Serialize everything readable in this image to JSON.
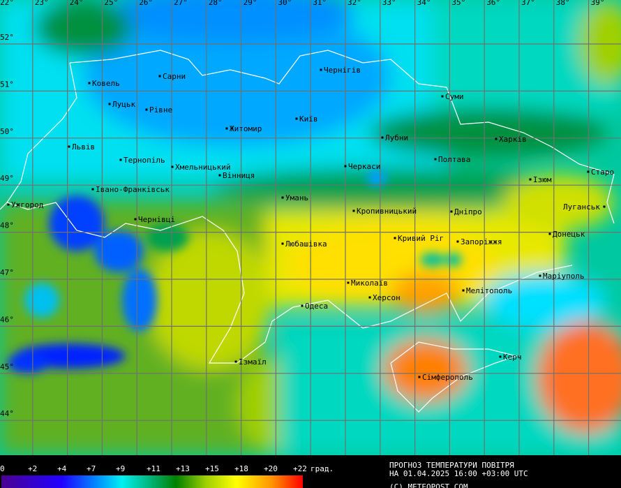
{
  "map": {
    "lon_labels": [
      "22°",
      "23°",
      "24°",
      "25°",
      "26°",
      "27°",
      "28°",
      "29°",
      "30°",
      "31°",
      "32°",
      "33°",
      "34°",
      "35°",
      "36°",
      "37°",
      "38°",
      "39°"
    ],
    "lat_labels": [
      "52°",
      "51°",
      "50°",
      "49°",
      "48°",
      "47°",
      "46°",
      "45°",
      "44°"
    ],
    "cities": [
      {
        "name": "Ковель"
      },
      {
        "name": "Сарни"
      },
      {
        "name": "Чернігів"
      },
      {
        "name": "Луцьк"
      },
      {
        "name": "Рівне"
      },
      {
        "name": "Суми"
      },
      {
        "name": "Київ"
      },
      {
        "name": "Житомир"
      },
      {
        "name": "Львів"
      },
      {
        "name": "Лубни"
      },
      {
        "name": "Харків"
      },
      {
        "name": "Тернопіль"
      },
      {
        "name": "Хмельницький"
      },
      {
        "name": "Полтава"
      },
      {
        "name": "Черкаси"
      },
      {
        "name": "Вінниця"
      },
      {
        "name": "Старо"
      },
      {
        "name": "Ізюм"
      },
      {
        "name": "Івано-Франківськ"
      },
      {
        "name": "Ужгород"
      },
      {
        "name": "Умань"
      },
      {
        "name": "Луганськ"
      },
      {
        "name": "Кропивницький"
      },
      {
        "name": "Дніпро"
      },
      {
        "name": "Чернівці"
      },
      {
        "name": "Донецьк"
      },
      {
        "name": "Кривий Ріг"
      },
      {
        "name": "Запоріжжя"
      },
      {
        "name": "Любашівка"
      },
      {
        "name": "Маріуполь"
      },
      {
        "name": "Миколаїв"
      },
      {
        "name": "Мелітополь"
      },
      {
        "name": "Херсон"
      },
      {
        "name": "Одеса"
      },
      {
        "name": "Керч"
      },
      {
        "name": "Ізмаїл"
      },
      {
        "name": "Сімферополь"
      }
    ]
  },
  "legend": {
    "ticks": [
      "0",
      "+2",
      "+4",
      "+7",
      "+9",
      "+11",
      "+13",
      "+15",
      "+18",
      "+20",
      "+22"
    ],
    "units": "град.",
    "colors": [
      "#4b0090",
      "#2000ff",
      "#0090ff",
      "#00f0f0",
      "#00b070",
      "#008000",
      "#a0d000",
      "#ffff00",
      "#ff9000",
      "#ff0000"
    ]
  },
  "title": {
    "line1": "ПРОГНОЗ ТЕМПЕРАТУРИ ПОВІТРЯ",
    "line2": "НА 01.04.2025 16:00 +03:00 UTC",
    "copyright": "(C) METEOPOST.COM"
  }
}
